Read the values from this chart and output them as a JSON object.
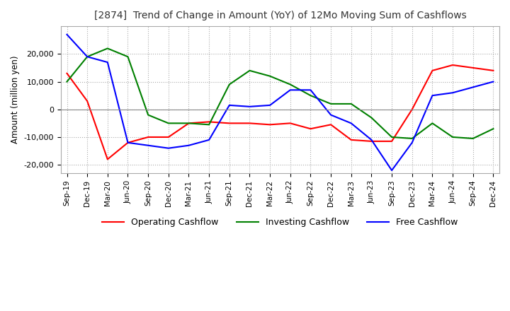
{
  "title": "[2874]  Trend of Change in Amount (YoY) of 12Mo Moving Sum of Cashflows",
  "ylabel": "Amount (million yen)",
  "ylim": [
    -23000,
    30000
  ],
  "yticks": [
    -20000,
    -10000,
    0,
    10000,
    20000
  ],
  "background_color": "#ffffff",
  "grid_color": "#aaaaaa",
  "x_labels": [
    "Sep-19",
    "Dec-19",
    "Mar-20",
    "Jun-20",
    "Sep-20",
    "Dec-20",
    "Mar-21",
    "Jun-21",
    "Sep-21",
    "Dec-21",
    "Mar-22",
    "Jun-22",
    "Sep-22",
    "Dec-22",
    "Mar-23",
    "Jun-23",
    "Sep-23",
    "Dec-23",
    "Mar-24",
    "Jun-24",
    "Sep-24",
    "Dec-24"
  ],
  "operating": [
    13000,
    3000,
    -18000,
    -12000,
    -10000,
    -10000,
    -5000,
    -4500,
    -5000,
    -5000,
    -5500,
    -5000,
    -7000,
    -5500,
    -11000,
    -11500,
    -11500,
    0,
    14000,
    16000,
    15000,
    14000
  ],
  "investing": [
    10000,
    19000,
    22000,
    19000,
    -2000,
    -5000,
    -5000,
    -5500,
    9000,
    14000,
    12000,
    9000,
    5000,
    2000,
    2000,
    -3000,
    -10000,
    -10500,
    -5000,
    -10000,
    -10500,
    -7000
  ],
  "free": [
    27000,
    19000,
    17000,
    -12000,
    -13000,
    -14000,
    -13000,
    -11000,
    1500,
    1000,
    1500,
    7000,
    7000,
    -2000,
    -5000,
    -11000,
    -22000,
    -12000,
    5000,
    6000,
    8000,
    10000
  ],
  "op_color": "#ff0000",
  "inv_color": "#008000",
  "free_color": "#0000ff",
  "legend_labels": [
    "Operating Cashflow",
    "Investing Cashflow",
    "Free Cashflow"
  ]
}
